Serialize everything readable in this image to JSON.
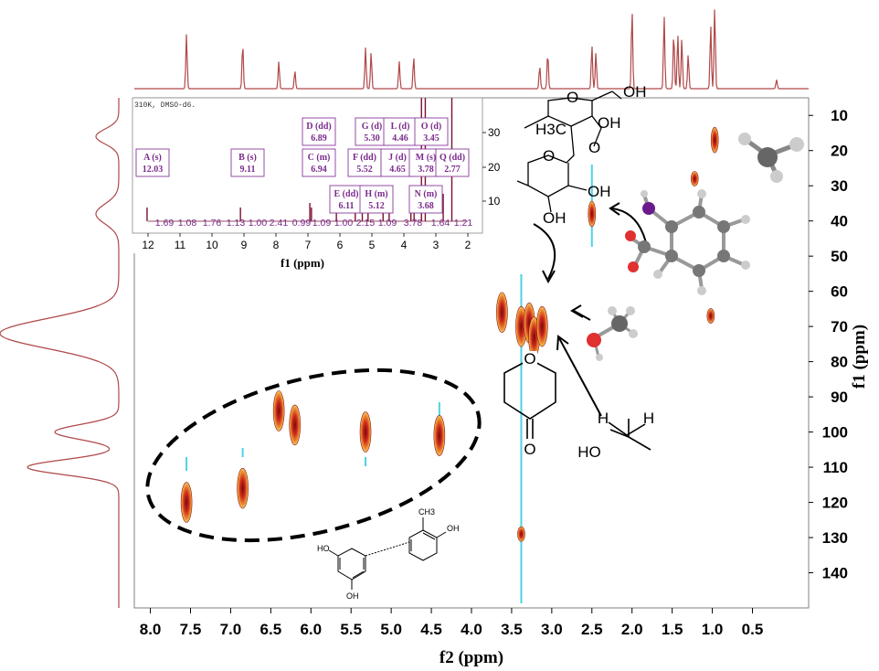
{
  "chart_data": {
    "type": "heatmap",
    "subtype": "2D NMR HSQC contour plot",
    "x_axis": {
      "label": "f2 (ppm)",
      "range": [
        8.2,
        -0.2
      ],
      "ticks": [
        "8.0",
        "7.5",
        "7.0",
        "6.5",
        "6.0",
        "5.5",
        "5.0",
        "4.5",
        "4.0",
        "3.5",
        "3.0",
        "2.5",
        "2.0",
        "1.5",
        "1.0",
        "0.5"
      ]
    },
    "y_axis": {
      "label": "f1 (ppm)",
      "range": [
        5,
        150
      ],
      "position": "right",
      "ticks": [
        "10",
        "20",
        "30",
        "40",
        "50",
        "60",
        "70",
        "80",
        "90",
        "100",
        "110",
        "120",
        "130",
        "140"
      ]
    },
    "cross_peaks": [
      {
        "x": 7.55,
        "y": 120,
        "intensity": "strong"
      },
      {
        "x": 6.85,
        "y": 116,
        "intensity": "strong"
      },
      {
        "x": 6.4,
        "y": 94,
        "intensity": "strong"
      },
      {
        "x": 6.2,
        "y": 98,
        "intensity": "strong"
      },
      {
        "x": 5.32,
        "y": 100,
        "intensity": "strong"
      },
      {
        "x": 4.4,
        "y": 101,
        "intensity": "strong"
      },
      {
        "x": 3.62,
        "y": 66,
        "intensity": "strong"
      },
      {
        "x": 3.38,
        "y": 70,
        "intensity": "strong"
      },
      {
        "x": 3.28,
        "y": 69,
        "intensity": "strong"
      },
      {
        "x": 3.22,
        "y": 73,
        "intensity": "strong"
      },
      {
        "x": 3.12,
        "y": 70,
        "intensity": "strong"
      },
      {
        "x": 2.5,
        "y": 38,
        "intensity": "medium"
      },
      {
        "x": 1.22,
        "y": 28,
        "intensity": "weak"
      },
      {
        "x": 0.97,
        "y": 17,
        "intensity": "medium"
      },
      {
        "x": 1.02,
        "y": 67,
        "intensity": "weak"
      },
      {
        "x": 3.38,
        "y": 129,
        "intensity": "weak"
      }
    ],
    "top_projection_peaks_ppm": [
      7.55,
      6.85,
      6.4,
      6.2,
      5.32,
      5.25,
      4.9,
      4.72,
      3.15,
      3.05,
      2.5,
      2.45,
      2.0,
      1.6,
      1.48,
      1.43,
      1.38,
      1.3,
      1.02,
      0.97,
      0.2
    ],
    "left_projection_peaks_ppm": [
      16,
      38,
      72,
      100,
      110
    ]
  },
  "inset": {
    "header": "310K, DMSO-d6.",
    "x_axis": {
      "label": "f1 (ppm)",
      "ticks": [
        "12",
        "11",
        "10",
        "9",
        "8",
        "7",
        "6",
        "5",
        "4",
        "3",
        "2"
      ]
    },
    "y_ticks": [
      "30",
      "20",
      "10"
    ],
    "peak_labels": [
      {
        "name": "A (s)",
        "value": "12.03"
      },
      {
        "name": "B (s)",
        "value": "9.11"
      },
      {
        "name": "C (m)",
        "value": "6.94"
      },
      {
        "name": "D (dd)",
        "value": "6.89"
      },
      {
        "name": "E (dd)",
        "value": "6.11"
      },
      {
        "name": "F (dd)",
        "value": "5.52"
      },
      {
        "name": "G (d)",
        "value": "5.30"
      },
      {
        "name": "H (m)",
        "value": "5.12"
      },
      {
        "name": "J (d)",
        "value": "4.65"
      },
      {
        "name": "L (d)",
        "value": "4.46"
      },
      {
        "name": "M (s)",
        "value": "3.78"
      },
      {
        "name": "N (m)",
        "value": "3.68"
      },
      {
        "name": "O (d)",
        "value": "3.45"
      },
      {
        "name": "Q (dd)",
        "value": "2.77"
      }
    ],
    "integrals": [
      "1.69",
      "1.08",
      "1.76",
      "1.13",
      "1.00",
      "2.41",
      "0.99",
      "1.09",
      "1.00",
      "2.15",
      "1.09",
      "3.78",
      "1.64",
      "1.21"
    ]
  },
  "molecules": {
    "methyl_label": "H3C",
    "sugar_oh_labels": [
      "OH",
      "OH",
      "OH",
      "OH"
    ],
    "sugar_o_labels": [
      "O",
      "O",
      "O"
    ],
    "pyranone_o_labels": [
      "O",
      "O"
    ],
    "methanol_h_labels": [
      "H",
      "H"
    ],
    "methanol_oh_label": "HO",
    "polyphenol_labels": [
      "HO",
      "OH",
      "OH",
      "CH3",
      "OH"
    ]
  },
  "colors": {
    "projection": "#b04848",
    "inset_peak": "#7a1030",
    "label_box": "#8a3a9c",
    "contour_red": "#c8281e",
    "contour_orange": "#f0a020",
    "contour_cyan": "#20c8e0"
  }
}
